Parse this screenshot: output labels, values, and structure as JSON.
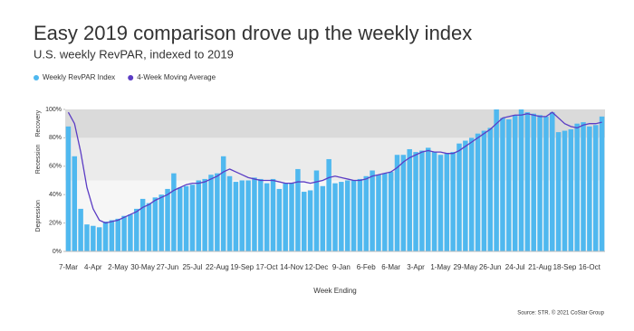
{
  "chart_data": {
    "type": "bar",
    "title": "Easy 2019 comparison drove up the weekly index",
    "subtitle": "U.S. weekly RevPAR, indexed to 2019",
    "x_label": "Week Ending",
    "source": "Source: STR. © 2021 CoStar Group",
    "categories": [
      "7-Mar",
      null,
      null,
      null,
      "4-Apr",
      null,
      null,
      null,
      "2-May",
      null,
      null,
      null,
      "30-May",
      null,
      null,
      null,
      "27-Jun",
      null,
      null,
      null,
      "25-Jul",
      null,
      null,
      null,
      "22-Aug",
      null,
      null,
      null,
      "19-Sep",
      null,
      null,
      null,
      "17-Oct",
      null,
      null,
      null,
      "14-Nov",
      null,
      null,
      null,
      "12-Dec",
      null,
      null,
      null,
      "9-Jan",
      null,
      null,
      null,
      "6-Feb",
      null,
      null,
      null,
      "6-Mar",
      null,
      null,
      null,
      "3-Apr",
      null,
      null,
      null,
      "1-May",
      null,
      null,
      null,
      "29-May",
      null,
      null,
      null,
      "26-Jun",
      null,
      null,
      null,
      "24-Jul",
      null,
      null,
      null,
      "21-Aug",
      null,
      null,
      null,
      "18-Sep",
      null,
      null,
      null,
      "16-Oct",
      null,
      null
    ],
    "series": [
      {
        "name": "Weekly RevPAR Index",
        "type": "bar",
        "color": "#4fb8ef",
        "values": [
          88,
          67,
          30,
          19,
          18,
          17,
          21,
          22,
          23,
          25,
          26,
          30,
          37,
          34,
          38,
          40,
          44,
          55,
          45,
          46,
          47,
          50,
          51,
          54,
          55,
          67,
          53,
          49,
          50,
          50,
          52,
          51,
          48,
          51,
          44,
          48,
          48,
          58,
          42,
          43,
          57,
          46,
          65,
          48,
          49,
          50,
          50,
          51,
          53,
          57,
          54,
          55,
          56,
          68,
          68,
          72,
          70,
          71,
          73,
          70,
          68,
          69,
          70,
          76,
          78,
          80,
          83,
          85,
          87,
          100,
          94,
          93,
          96,
          100,
          98,
          97,
          96,
          95,
          98,
          84,
          85,
          86,
          90,
          91,
          88,
          89,
          95
        ]
      },
      {
        "name": "4-Week Moving Average",
        "type": "line",
        "color": "#5b3cc4",
        "values": [
          98,
          90,
          70,
          45,
          30,
          22,
          20,
          21,
          22,
          24,
          26,
          28,
          31,
          33,
          36,
          38,
          40,
          43,
          45,
          47,
          48,
          48,
          49,
          51,
          53,
          56,
          58,
          56,
          54,
          52,
          51,
          50,
          50,
          50,
          49,
          48,
          48,
          49,
          49,
          48,
          49,
          50,
          52,
          53,
          52,
          51,
          50,
          50,
          51,
          53,
          54,
          55,
          56,
          59,
          63,
          66,
          68,
          70,
          71,
          70,
          70,
          69,
          69,
          71,
          74,
          77,
          80,
          83,
          86,
          90,
          94,
          95,
          96,
          96,
          97,
          96,
          95,
          95,
          98,
          94,
          90,
          88,
          87,
          89,
          90,
          90,
          91
        ]
      }
    ],
    "ylim": [
      0,
      100
    ],
    "yticks": [
      {
        "value": 0,
        "label": "0%"
      },
      {
        "value": 20,
        "label": "20%"
      },
      {
        "value": 40,
        "label": "40%"
      },
      {
        "value": 60,
        "label": "60%"
      },
      {
        "value": 80,
        "label": "80%"
      },
      {
        "value": 100,
        "label": "100%"
      }
    ],
    "bands": [
      {
        "label": "Depression",
        "from": 0,
        "to": 50,
        "color": "#f6f6f6"
      },
      {
        "label": "Recession",
        "from": 50,
        "to": 80,
        "color": "#ebebeb"
      },
      {
        "label": "Recovery",
        "from": 80,
        "to": 100,
        "color": "#dadada"
      }
    ]
  }
}
